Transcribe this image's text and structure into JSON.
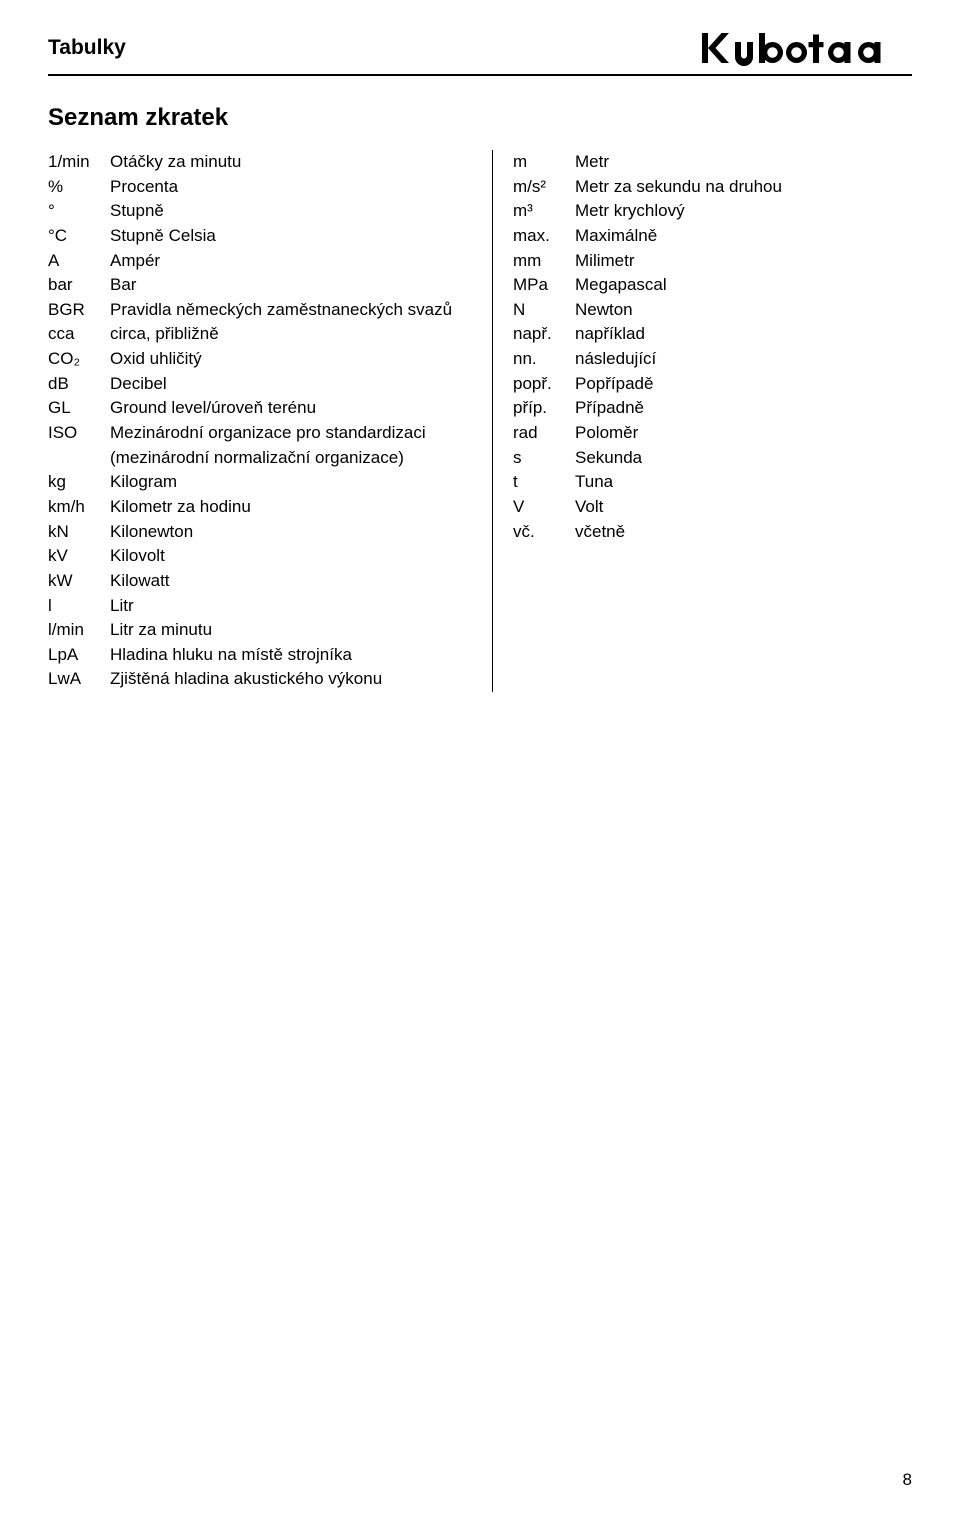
{
  "header": {
    "title": "Tabulky",
    "brand": "Kubota"
  },
  "section_title": "Seznam zkratek",
  "page_number": "8",
  "colors": {
    "text": "#000000",
    "background": "#ffffff",
    "rule": "#000000"
  },
  "left": [
    {
      "abbr": "1/min",
      "defn": "Otáčky za minutu"
    },
    {
      "abbr": "%",
      "defn": "Procenta"
    },
    {
      "abbr": "°",
      "defn": "Stupně"
    },
    {
      "abbr": "°C",
      "defn": "Stupně Celsia"
    },
    {
      "abbr": "A",
      "defn": "Ampér"
    },
    {
      "abbr": "bar",
      "defn": "Bar"
    },
    {
      "abbr": "BGR",
      "defn": "Pravidla německých zaměstnaneckých svazů"
    },
    {
      "abbr": "cca",
      "defn": "circa, přibližně"
    },
    {
      "abbr": "CO₂",
      "defn": "Oxid uhličitý"
    },
    {
      "abbr": "dB",
      "defn": "Decibel"
    },
    {
      "abbr": "GL",
      "defn": "Ground level/úroveň terénu"
    },
    {
      "abbr": "ISO",
      "defn": "Mezinárodní organizace pro standardizaci (mezinárodní normalizační organizace)"
    },
    {
      "abbr": "kg",
      "defn": "Kilogram"
    },
    {
      "abbr": "km/h",
      "defn": "Kilometr za hodinu"
    },
    {
      "abbr": "kN",
      "defn": "Kilonewton"
    },
    {
      "abbr": "kV",
      "defn": "Kilovolt"
    },
    {
      "abbr": "kW",
      "defn": "Kilowatt"
    },
    {
      "abbr": "l",
      "defn": "Litr"
    },
    {
      "abbr": "l/min",
      "defn": "Litr za minutu"
    },
    {
      "abbr": "LpA",
      "defn": "Hladina hluku na místě strojníka"
    },
    {
      "abbr": "LwA",
      "defn": "Zjištěná hladina akustického výkonu"
    }
  ],
  "right": [
    {
      "abbr": "m",
      "defn": "Metr"
    },
    {
      "abbr": "m/s²",
      "defn": "Metr za sekundu na druhou"
    },
    {
      "abbr": "m³",
      "defn": "Metr krychlový"
    },
    {
      "abbr": "max.",
      "defn": "Maximálně"
    },
    {
      "abbr": "mm",
      "defn": "Milimetr"
    },
    {
      "abbr": "MPa",
      "defn": "Megapascal"
    },
    {
      "abbr": "N",
      "defn": "Newton"
    },
    {
      "abbr": "např.",
      "defn": "například"
    },
    {
      "abbr": "nn.",
      "defn": "následující"
    },
    {
      "abbr": "popř.",
      "defn": "Popřípadě"
    },
    {
      "abbr": "příp.",
      "defn": "Případně"
    },
    {
      "abbr": "rad",
      "defn": "Poloměr"
    },
    {
      "abbr": "s",
      "defn": "Sekunda"
    },
    {
      "abbr": "t",
      "defn": "Tuna"
    },
    {
      "abbr": "V",
      "defn": "Volt"
    },
    {
      "abbr": "vč.",
      "defn": "včetně"
    }
  ]
}
